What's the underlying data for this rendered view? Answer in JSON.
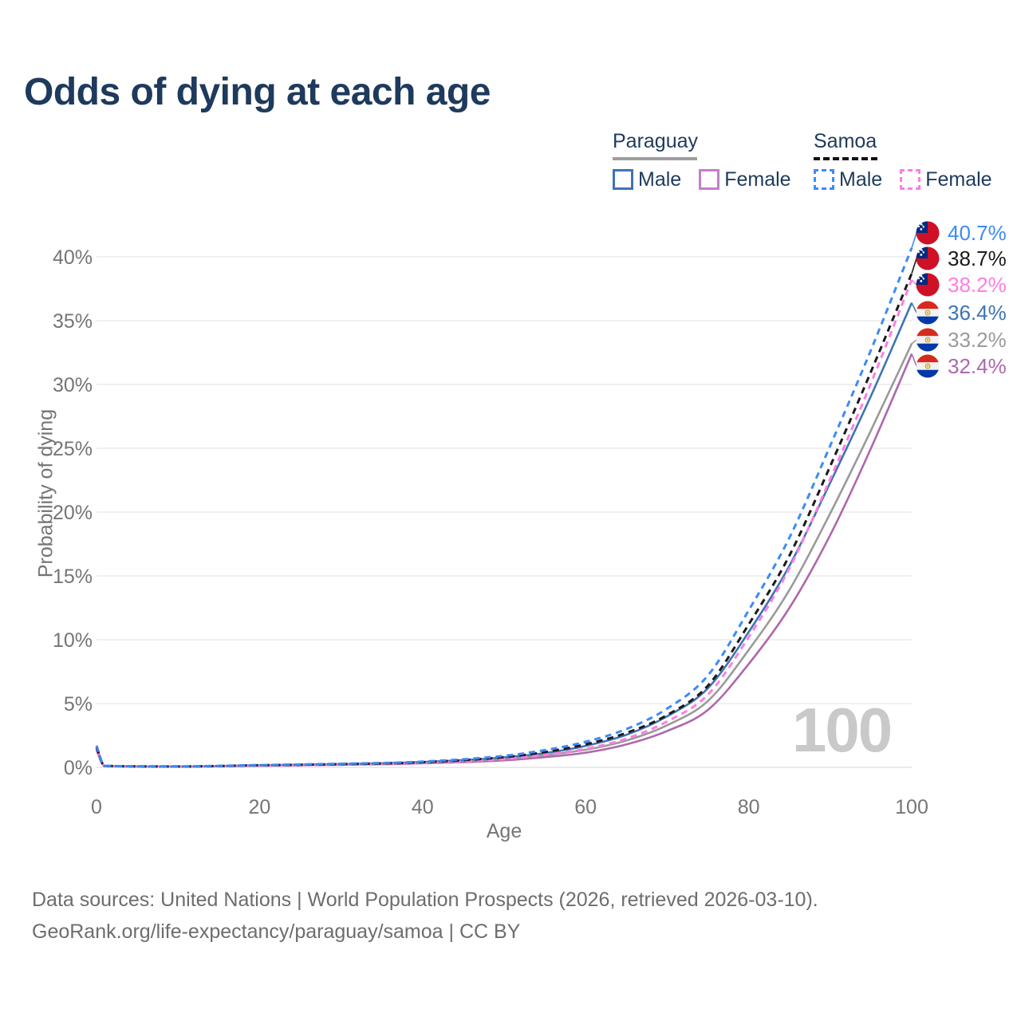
{
  "title": "Odds of dying at each age",
  "watermark": "100",
  "legend": {
    "groups": [
      {
        "name": "Paraguay",
        "line_style": "solid",
        "underline_color": "#9e9e9e",
        "items": [
          {
            "label": "Male",
            "color": "#3e74b4",
            "dashed": false
          },
          {
            "label": "Female",
            "color": "#c17fc9",
            "dashed": false
          }
        ]
      },
      {
        "name": "Samoa",
        "line_style": "dashed",
        "underline_color": "#111111",
        "items": [
          {
            "label": "Male",
            "color": "#3d8bf5",
            "dashed": true
          },
          {
            "label": "Female",
            "color": "#ff7de1",
            "dashed": true
          }
        ]
      }
    ]
  },
  "chart_data": {
    "type": "line",
    "title": "Odds of dying at each age",
    "xlabel": "Age",
    "ylabel": "Probability of dying",
    "xlim": [
      0,
      100
    ],
    "ylim_pct": [
      0,
      42
    ],
    "grid": "horizontal-only",
    "x_ticks": [
      "0",
      "20",
      "40",
      "60",
      "80",
      "100"
    ],
    "y_ticks": [
      "0%",
      "5%",
      "10%",
      "15%",
      "20%",
      "25%",
      "30%",
      "35%",
      "40%"
    ],
    "ages": [
      0,
      1,
      10,
      20,
      30,
      40,
      50,
      55,
      60,
      65,
      70,
      75,
      80,
      85,
      90,
      95,
      100
    ],
    "series": [
      {
        "id": "samoa-male",
        "country": "Samoa",
        "sex": "Male",
        "color": "#3d8bf5",
        "dashed": true,
        "end_label": "40.7%",
        "flag": "samoa",
        "values": [
          1.7,
          0.12,
          0.08,
          0.18,
          0.28,
          0.45,
          0.9,
          1.35,
          2.0,
          3.0,
          4.6,
          7.2,
          12.3,
          18.0,
          25.2,
          32.7,
          40.7
        ]
      },
      {
        "id": "samoa-both",
        "country": "Samoa",
        "sex": "Both sexes",
        "color": "#1a1a1a",
        "dashed": true,
        "end_label": "38.7%",
        "flag": "samoa",
        "values": [
          1.55,
          0.11,
          0.07,
          0.16,
          0.25,
          0.4,
          0.8,
          1.2,
          1.8,
          2.7,
          4.1,
          6.4,
          11.2,
          16.6,
          23.6,
          31.0,
          38.7
        ]
      },
      {
        "id": "samoa-female",
        "country": "Samoa",
        "sex": "Female",
        "color": "#ff7de1",
        "dashed": true,
        "end_label": "38.2%",
        "flag": "samoa",
        "values": [
          1.4,
          0.1,
          0.06,
          0.14,
          0.22,
          0.34,
          0.65,
          0.98,
          1.45,
          2.25,
          3.6,
          5.7,
          10.2,
          15.6,
          22.6,
          30.1,
          38.2
        ]
      },
      {
        "id": "paraguay-male",
        "country": "Paraguay",
        "sex": "Male",
        "color": "#3e74b4",
        "dashed": false,
        "end_label": "36.4%",
        "flag": "paraguay",
        "values": [
          1.6,
          0.11,
          0.07,
          0.17,
          0.26,
          0.42,
          0.78,
          1.12,
          1.68,
          2.55,
          4.0,
          6.2,
          10.6,
          15.8,
          22.3,
          29.1,
          36.4
        ]
      },
      {
        "id": "paraguay-both",
        "country": "Paraguay",
        "sex": "Both sexes",
        "color": "#9a9a9a",
        "dashed": false,
        "end_label": "33.2%",
        "flag": "paraguay",
        "values": [
          1.45,
          0.1,
          0.06,
          0.15,
          0.23,
          0.37,
          0.66,
          0.95,
          1.38,
          2.1,
          3.3,
          5.2,
          9.2,
          13.9,
          19.9,
          26.4,
          33.2
        ]
      },
      {
        "id": "paraguay-female",
        "country": "Paraguay",
        "sex": "Female",
        "color": "#ad68ad",
        "dashed": false,
        "end_label": "32.4%",
        "flag": "paraguay",
        "values": [
          1.3,
          0.09,
          0.05,
          0.13,
          0.2,
          0.31,
          0.55,
          0.8,
          1.15,
          1.8,
          2.85,
          4.5,
          8.1,
          12.5,
          18.2,
          25.0,
          32.4
        ]
      }
    ]
  },
  "footer": {
    "line1": "Data sources: United Nations | World Population Prospects (2026, retrieved 2026-03-10).",
    "line2": "GeoRank.org/life-expectancy/paraguay/samoa | CC BY"
  }
}
